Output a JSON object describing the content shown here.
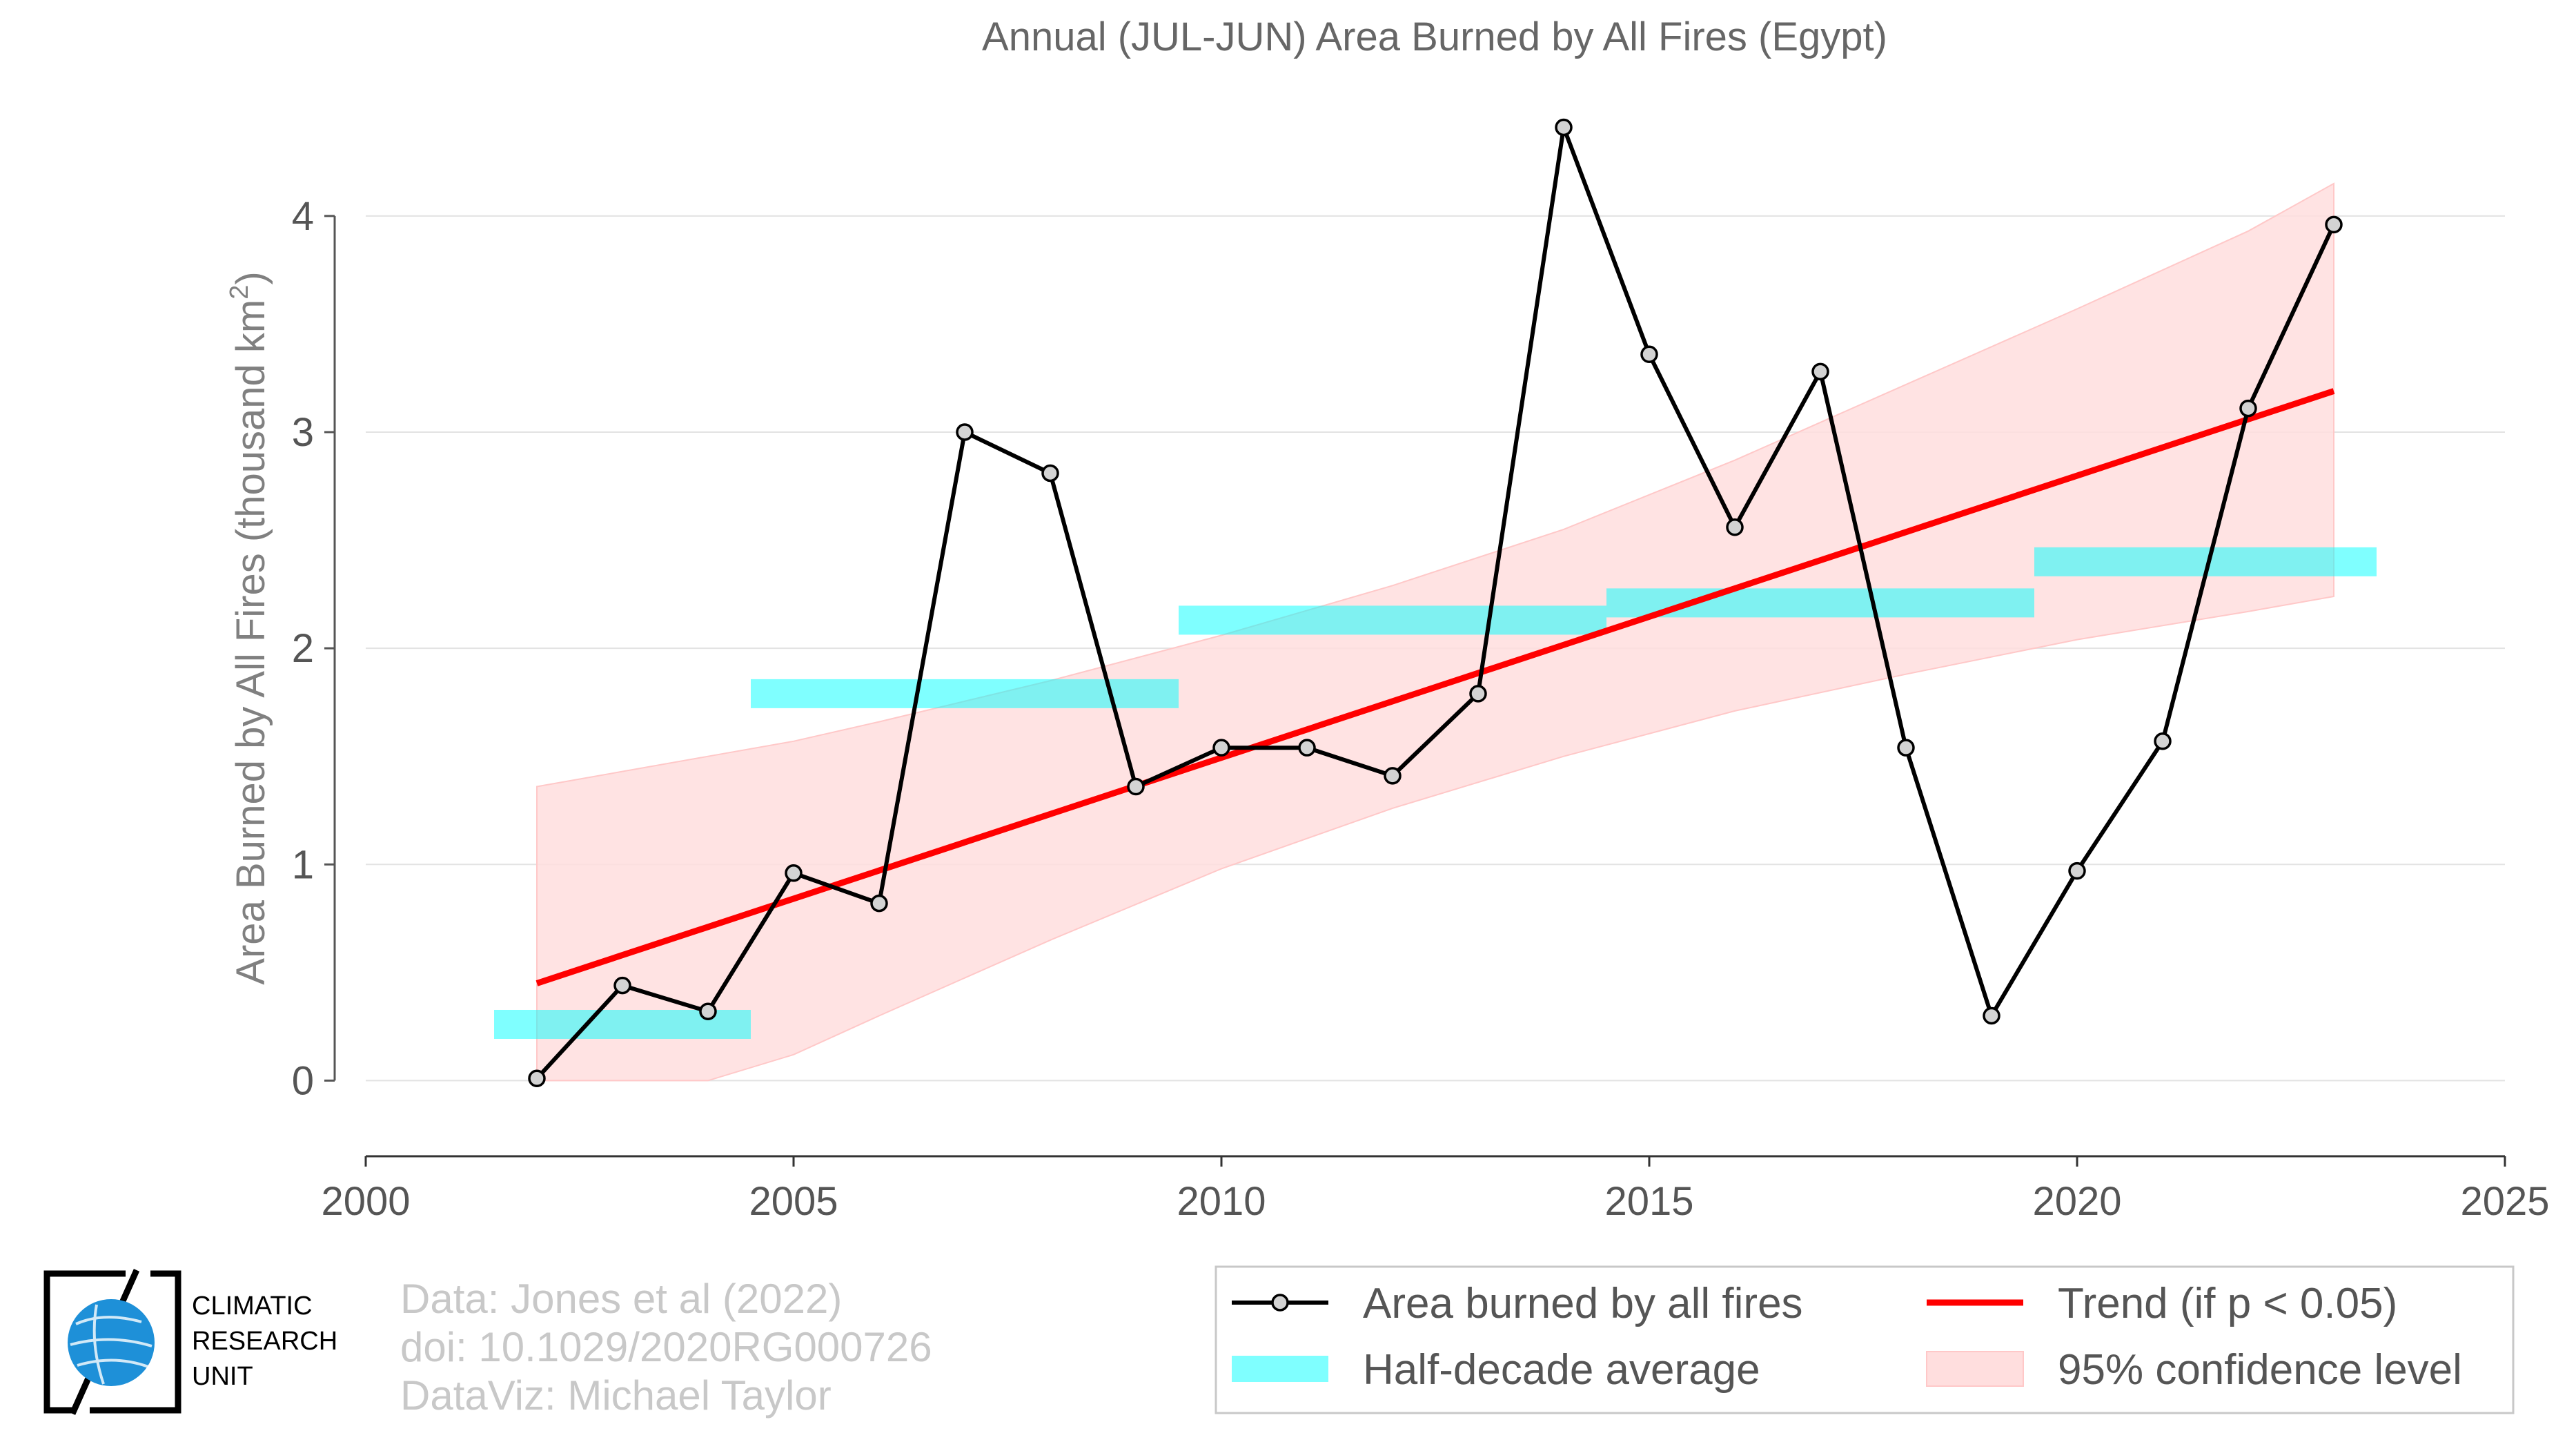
{
  "title": "Annual (JUL-JUN) Area Burned by All Fires (Egypt)",
  "ylabel_main": "Area Burned by All Fires (thousand km",
  "ylabel_sup": "2",
  "ylabel_end": ")",
  "credits": {
    "line1": "Data: Jones et al (2022)",
    "line2": "doi: 10.1029/2020RG000726",
    "line3": "DataViz: Michael Taylor"
  },
  "logo": {
    "line1": "CLIMATIC",
    "line2": "RESEARCH",
    "line3": "UNIT"
  },
  "legend": {
    "series": "Area burned by all fires",
    "half_decade": "Half-decade average",
    "trend": "Trend (if p < 0.05)",
    "ci": "95% confidence level"
  },
  "colors": {
    "series": "#000000",
    "marker_fill": "#d3d3d3",
    "trend": "#ff0000",
    "half_decade": "#00ffff",
    "ci_fill": "#ffdede",
    "ci_edge": "#ffc8c8"
  },
  "chart_data": {
    "type": "line",
    "title": "Annual (JUL-JUN) Area Burned by All Fires (Egypt)",
    "xlabel": "",
    "ylabel": "Area Burned by All Fires (thousand km2)",
    "xlim": [
      2000,
      2025
    ],
    "ylim": [
      -0.35,
      4.6
    ],
    "xticks": [
      2000,
      2005,
      2010,
      2015,
      2020,
      2025
    ],
    "yticks": [
      0,
      1,
      2,
      3,
      4
    ],
    "grid": "horizontal",
    "legend_position": "bottom-right",
    "series": [
      {
        "name": "Area burned by all fires",
        "x": [
          2002,
          2003,
          2004,
          2005,
          2006,
          2007,
          2008,
          2009,
          2010,
          2011,
          2012,
          2013,
          2014,
          2015,
          2016,
          2017,
          2018,
          2019,
          2020,
          2021,
          2022,
          2023
        ],
        "values": [
          0.01,
          0.44,
          0.32,
          0.96,
          0.82,
          3.0,
          2.81,
          1.36,
          1.54,
          1.54,
          1.41,
          1.79,
          4.41,
          3.36,
          2.56,
          3.28,
          1.54,
          0.3,
          0.97,
          1.57,
          3.11,
          3.96
        ]
      }
    ],
    "half_decade_average": {
      "name": "Half-decade average",
      "periods": [
        {
          "x_start": 2001.5,
          "x_end": 2004.5,
          "value": 0.26
        },
        {
          "x_start": 2004.5,
          "x_end": 2009.5,
          "value": 1.79
        },
        {
          "x_start": 2009.5,
          "x_end": 2014.5,
          "value": 2.13
        },
        {
          "x_start": 2014.5,
          "x_end": 2019.5,
          "value": 2.21
        },
        {
          "x_start": 2019.5,
          "x_end": 2023.5,
          "value": 2.4
        }
      ]
    },
    "trend": {
      "name": "Trend (if p < 0.05)",
      "x": [
        2002,
        2023
      ],
      "values": [
        0.45,
        3.19
      ]
    },
    "confidence_band": {
      "name": "95% confidence level",
      "x": [
        2002,
        2004,
        2005,
        2006,
        2008,
        2010,
        2012,
        2014,
        2016,
        2018,
        2020,
        2022,
        2023
      ],
      "lower": [
        0.0,
        0.0,
        0.12,
        0.3,
        0.65,
        0.98,
        1.26,
        1.5,
        1.71,
        1.88,
        2.04,
        2.17,
        2.24
      ],
      "upper": [
        1.36,
        1.5,
        1.57,
        1.66,
        1.85,
        2.06,
        2.29,
        2.55,
        2.87,
        3.22,
        3.57,
        3.93,
        4.15
      ]
    }
  }
}
